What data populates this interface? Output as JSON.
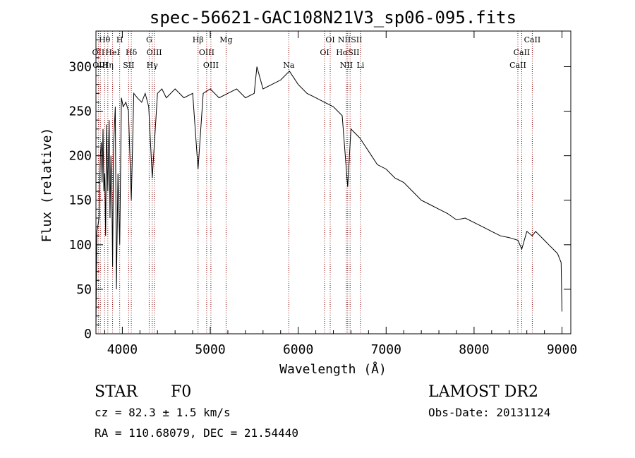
{
  "chart_data": {
    "type": "line",
    "title": "spec-56621-GAC108N21V3_sp06-095.fits",
    "xlabel": "Wavelength (Å)",
    "ylabel": "Flux (relative)",
    "xlim": [
      3700,
      9100
    ],
    "ylim": [
      0,
      340
    ],
    "xticks": [
      4000,
      5000,
      6000,
      7000,
      8000,
      9000
    ],
    "yticks": [
      0,
      50,
      100,
      150,
      200,
      250,
      300
    ],
    "grid": false,
    "line_color": "#000000",
    "marker_color": "#8b0000",
    "series": [
      {
        "x": [
          3700,
          3710,
          3720,
          3735,
          3750,
          3760,
          3770,
          3780,
          3790,
          3800,
          3810,
          3820,
          3835,
          3850,
          3860,
          3870,
          3880,
          3889,
          3900,
          3920,
          3933,
          3950,
          3970,
          3990,
          4010,
          4040,
          4070,
          4102,
          4130,
          4170,
          4220,
          4260,
          4300,
          4340,
          4400,
          4450,
          4500,
          4600,
          4700,
          4800,
          4861,
          4920,
          5000,
          5100,
          5200,
          5300,
          5400,
          5500,
          5530,
          5600,
          5700,
          5800,
          5900,
          6000,
          6100,
          6200,
          6300,
          6400,
          6500,
          6563,
          6600,
          6700,
          6800,
          6900,
          7000,
          7100,
          7200,
          7300,
          7400,
          7500,
          7600,
          7700,
          7800,
          7900,
          8000,
          8100,
          8200,
          8300,
          8400,
          8500,
          8542,
          8600,
          8662,
          8700,
          8800,
          8850,
          8900,
          8950,
          8990,
          9000
        ],
        "y": [
          5,
          115,
          120,
          130,
          200,
          215,
          170,
          230,
          160,
          180,
          110,
          235,
          160,
          240,
          130,
          200,
          170,
          75,
          210,
          255,
          50,
          180,
          100,
          265,
          255,
          260,
          250,
          150,
          270,
          265,
          260,
          270,
          255,
          175,
          270,
          275,
          265,
          275,
          265,
          270,
          185,
          270,
          275,
          265,
          270,
          275,
          265,
          270,
          300,
          275,
          280,
          285,
          295,
          280,
          270,
          265,
          260,
          255,
          245,
          165,
          230,
          220,
          205,
          190,
          185,
          175,
          170,
          160,
          150,
          145,
          140,
          135,
          128,
          130,
          125,
          120,
          115,
          110,
          108,
          105,
          95,
          115,
          110,
          115,
          105,
          100,
          95,
          90,
          80,
          25
        ]
      }
    ],
    "line_markers": [
      {
        "label": "Hθ",
        "x": 3798
      },
      {
        "label": "H",
        "x": 3970
      },
      {
        "label": "G",
        "x": 4305
      },
      {
        "label": "Hβ",
        "x": 4861
      },
      {
        "label": "Mg",
        "x": 5180
      },
      {
        "label": "OI",
        "x": 6364
      },
      {
        "label": "NIISII",
        "x": 6590
      },
      {
        "label": "CaII",
        "x": 8662
      },
      {
        "label": "OII",
        "x": 3727
      },
      {
        "label": "HeI",
        "x": 3889
      },
      {
        "label": "Hδ",
        "x": 4102
      },
      {
        "label": "OIII",
        "x": 4363
      },
      {
        "label": "OIII",
        "x": 4959
      },
      {
        "label": "OI",
        "x": 6300
      },
      {
        "label": "HαSII",
        "x": 6563
      },
      {
        "label": "CaII",
        "x": 8542
      },
      {
        "label": "OIII",
        "x": 3750
      },
      {
        "label": "Hη",
        "x": 3835
      },
      {
        "label": "SII",
        "x": 4072
      },
      {
        "label": "Hγ",
        "x": 4340
      },
      {
        "label": "OIII",
        "x": 5007
      },
      {
        "label": "Na",
        "x": 5893
      },
      {
        "label": "NII",
        "x": 6548
      },
      {
        "label": "Li",
        "x": 6708
      },
      {
        "label": "CaII",
        "x": 8498
      }
    ]
  },
  "info": {
    "object_type": "STAR",
    "spectral_class": "F0",
    "redshift_line": "cz = 82.3 ± 1.5 km/s",
    "position_line": "RA = 110.68079, DEC =  21.54440",
    "survey": "LAMOST DR2",
    "obs_date": "Obs-Date: 20131124"
  }
}
